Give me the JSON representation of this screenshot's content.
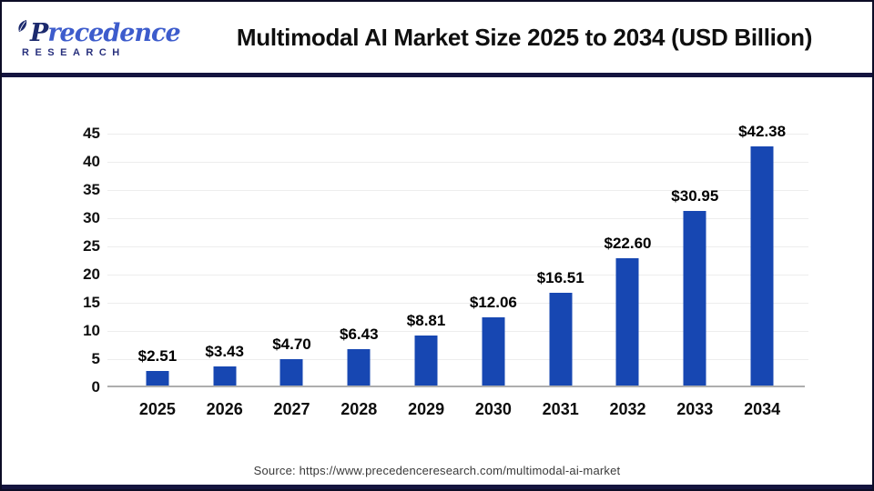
{
  "header": {
    "logo": {
      "brand_initial": "P",
      "brand_rest": "recedence",
      "brand_subtitle": "RESEARCH"
    },
    "title": "Multimodal AI Market Size 2025 to 2034 (USD Billion)"
  },
  "chart_data": {
    "type": "bar",
    "title": "Multimodal AI Market Size 2025 to 2034 (USD Billion)",
    "categories": [
      "2025",
      "2026",
      "2027",
      "2028",
      "2029",
      "2030",
      "2031",
      "2032",
      "2033",
      "2034"
    ],
    "values": [
      2.51,
      3.43,
      4.7,
      6.43,
      8.81,
      12.06,
      16.51,
      22.6,
      30.95,
      42.38
    ],
    "value_labels": [
      "$2.51",
      "$3.43",
      "$4.70",
      "$6.43",
      "$8.81",
      "$12.06",
      "$16.51",
      "$22.60",
      "$30.95",
      "$42.38"
    ],
    "xlabel": "",
    "ylabel": "",
    "ylim": [
      0,
      45
    ],
    "y_ticks": [
      0,
      5,
      10,
      15,
      20,
      25,
      30,
      35,
      40,
      45
    ],
    "grid": "horizontal-faint",
    "legend": "none",
    "bar_color": "#1747b2"
  },
  "footer": {
    "source": "Source: https://www.precedenceresearch.com/multimodal-ai-market"
  },
  "colors": {
    "bar": "#1747b2",
    "divider_navy": "#14143f",
    "axis_baseline": "#aeaeae",
    "gridline": "#ededed",
    "logo_blue": "#3d5ccc",
    "logo_navy": "#1c2a6e",
    "title_text": "#0f0f0f",
    "source_text": "#3a3a3a"
  }
}
